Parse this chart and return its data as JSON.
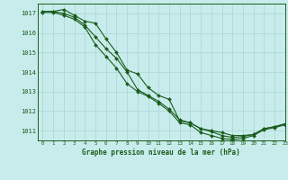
{
  "title": "Graphe pression niveau de la mer (hPa)",
  "bg_color": "#c8ecec",
  "grid_color": "#aad4d4",
  "line_color": "#1a5c1a",
  "xlim": [
    -0.5,
    23
  ],
  "ylim": [
    1010.5,
    1017.5
  ],
  "yticks": [
    1011,
    1012,
    1013,
    1014,
    1015,
    1016,
    1017
  ],
  "xticks": [
    0,
    1,
    2,
    3,
    4,
    5,
    6,
    7,
    8,
    9,
    10,
    11,
    12,
    13,
    14,
    15,
    16,
    17,
    18,
    19,
    20,
    21,
    22,
    23
  ],
  "series1": [
    1017.1,
    1017.1,
    1017.2,
    1016.9,
    1016.6,
    1016.5,
    1015.7,
    1015.0,
    1014.1,
    1013.9,
    1013.2,
    1012.8,
    1012.6,
    1011.5,
    1011.4,
    1011.1,
    1011.0,
    1010.9,
    1010.75,
    1010.75,
    1010.8,
    1011.1,
    1011.2,
    1011.35
  ],
  "series2": [
    1017.1,
    1017.1,
    1017.0,
    1016.8,
    1016.4,
    1015.8,
    1015.2,
    1014.7,
    1014.0,
    1013.1,
    1012.8,
    1012.5,
    1012.1,
    1011.55,
    1011.4,
    1011.1,
    1010.95,
    1010.75,
    1010.65,
    1010.7,
    1010.8,
    1011.1,
    1011.2,
    1011.35
  ],
  "series3": [
    1017.05,
    1017.05,
    1016.9,
    1016.7,
    1016.3,
    1015.4,
    1014.8,
    1014.2,
    1013.4,
    1013.0,
    1012.75,
    1012.4,
    1012.0,
    1011.4,
    1011.3,
    1010.9,
    1010.75,
    1010.6,
    1010.55,
    1010.6,
    1010.75,
    1011.05,
    1011.15,
    1011.3
  ],
  "marker_size": 2.0,
  "line_width": 0.8,
  "xlabel_fontsize": 5.5,
  "ytick_fontsize": 5.0,
  "xtick_fontsize": 4.2
}
